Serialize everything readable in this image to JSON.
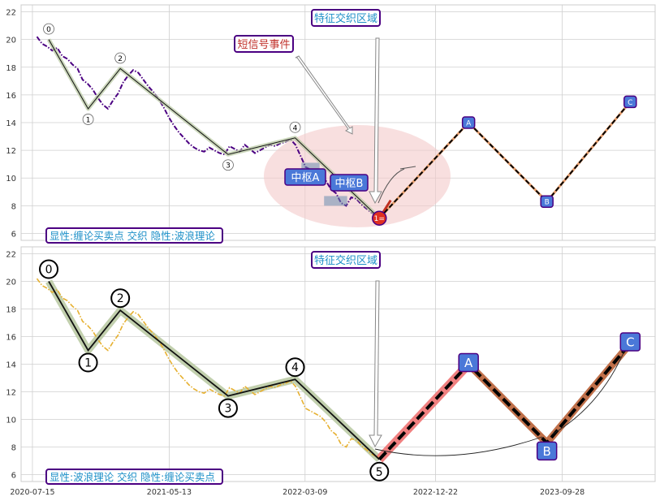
{
  "chart_data": [
    {
      "type": "line",
      "ylim": [
        5.5,
        22.5
      ],
      "y_ticks": [
        6,
        8,
        10,
        12,
        14,
        16,
        18,
        20,
        22
      ],
      "grid": true,
      "price_series": {
        "name": "",
        "color": "#4b0082",
        "style": "dash-dot",
        "values": [
          20.2,
          19.7,
          19.5,
          19.2,
          19.4,
          18.8,
          18.6,
          18.2,
          17.9,
          17.1,
          16.8,
          16.4,
          15.8,
          15.3,
          15.0,
          15.6,
          16.1,
          16.9,
          17.4,
          17.8,
          17.6,
          17.1,
          16.6,
          16.2,
          15.7,
          15.1,
          14.4,
          13.8,
          13.3,
          12.9,
          12.5,
          12.2,
          12.0,
          11.9,
          12.2,
          12.0,
          11.8,
          11.7,
          12.3,
          12.1,
          11.9,
          12.4,
          12.1,
          11.8,
          12.0,
          12.2,
          12.4,
          12.3,
          12.5,
          12.6,
          12.8,
          12.4,
          11.6,
          10.8,
          10.6,
          10.4,
          10.2,
          9.8,
          9.2,
          8.9,
          8.2,
          8.0,
          8.6,
          8.5,
          8.1,
          7.8,
          7.5,
          7.3,
          7.2
        ]
      },
      "wave_points": [
        {
          "label": "0",
          "date": "2020-08-20",
          "value": 20.0
        },
        {
          "label": "1",
          "date": "2020-11-15",
          "value": 15.0
        },
        {
          "label": "2",
          "date": "2021-01-25",
          "value": 17.9
        },
        {
          "label": "3",
          "date": "2021-09-20",
          "value": 11.7
        },
        {
          "label": "4",
          "date": "2022-02-15",
          "value": 12.9
        },
        {
          "label": "1=",
          "date": "2022-08-20",
          "value": 7.1
        }
      ],
      "projection": [
        {
          "label": "A",
          "date": "2023-03-05",
          "value": 14.0
        },
        {
          "label": "B",
          "date": "2023-08-25",
          "value": 8.3
        },
        {
          "label": "C",
          "date": "2024-02-25",
          "value": 15.5
        }
      ],
      "zones": [
        {
          "label": "中枢A",
          "date_start": "2022-03-01",
          "date_end": "2022-04-10",
          "low": 10.6,
          "high": 11.1
        },
        {
          "label": "中枢B",
          "date_start": "2022-04-20",
          "date_end": "2022-06-10",
          "low": 8.0,
          "high": 8.7
        }
      ],
      "annotations": {
        "short_signal": "短信号事件",
        "feature_zone": "特征交织区域",
        "zhongshu_a": "中枢A",
        "zhongshu_b": "中枢B"
      },
      "legend_text": "显性:缠论买卖点 交织 隐性:波浪理论"
    },
    {
      "type": "line",
      "ylim": [
        5.5,
        22.5
      ],
      "y_ticks": [
        6,
        8,
        10,
        12,
        14,
        16,
        18,
        20,
        22
      ],
      "x_ticks": [
        "2020-07-15",
        "2021-05-13",
        "2022-03-09",
        "2022-12-22",
        "2023-09-28"
      ],
      "grid": true,
      "price_series": {
        "name": "",
        "color": "#e6b030",
        "style": "dash-dot"
      },
      "wave_points": [
        {
          "label": "0",
          "date": "2020-08-20",
          "value": 20.0
        },
        {
          "label": "1",
          "date": "2020-11-15",
          "value": 15.0
        },
        {
          "label": "2",
          "date": "2021-01-25",
          "value": 17.9
        },
        {
          "label": "3",
          "date": "2021-09-20",
          "value": 11.7
        },
        {
          "label": "4",
          "date": "2022-02-15",
          "value": 12.9
        },
        {
          "label": "5",
          "date": "2022-08-20",
          "value": 7.1
        }
      ],
      "projection": [
        {
          "label": "A",
          "date": "2023-03-05",
          "value": 14.0
        },
        {
          "label": "B",
          "date": "2023-08-25",
          "value": 8.3
        },
        {
          "label": "C",
          "date": "2024-02-25",
          "value": 15.5
        }
      ],
      "annotations": {
        "feature_zone": "特征交织区域"
      },
      "legend_text": "显性:波浪理论 交织 隐性:缠论买卖点"
    }
  ],
  "colors": {
    "grid": "#cfcfcf",
    "label_border": "#4b0082",
    "label_text": "#1e90c8",
    "marker_fill": "#4a78d8",
    "ellipse": "#f3c9c9",
    "red_dot": "#e03020",
    "up_band": "#f08080",
    "down_band": "#c0704a",
    "wave_band": "#b7c8a0"
  }
}
